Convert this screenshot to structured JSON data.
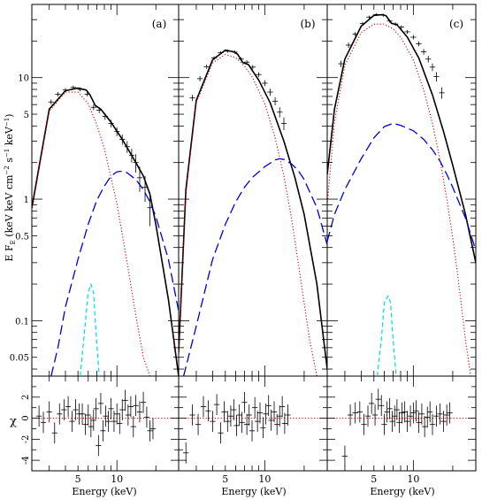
{
  "figure": {
    "ylabel": "E F_E (keV keV cm^-2 s^-1 keV^-1)",
    "ylabel_parts": {
      "main": "E F",
      "sub": "E",
      "rest": " (keV keV cm",
      "sup1": "−2",
      "mid": " s",
      "sup2": "−1",
      "mid2": " keV",
      "sup3": "−1",
      "end": ")"
    },
    "residual_ylabel": "χ",
    "xlabel": "Energy (keV)"
  },
  "colors": {
    "data": "#000000",
    "total_model": "#000000",
    "thermal_component": "#cc0000",
    "comptonized_component": "#0000cc",
    "line_component": "#00dddd",
    "zero_line": "#cc0000"
  },
  "chart_data": [
    {
      "type": "line",
      "panel_label": "(a)",
      "x_scale": "log",
      "y_scale": "log",
      "xlim": [
        2.2,
        30
      ],
      "ylim": [
        0.035,
        40
      ],
      "x_ticks": [
        5,
        10
      ],
      "y_ticks": [
        0.05,
        0.1,
        0.5,
        1,
        5,
        10
      ],
      "y_tick_labels_shown": true,
      "series": [
        {
          "kind": "total",
          "x": [
            2.2,
            3,
            4,
            5,
            5.8,
            6.2,
            6.8,
            7.5,
            9,
            11,
            14,
            16,
            18,
            20,
            25,
            30
          ],
          "y": [
            0.85,
            5.5,
            7.8,
            8.2,
            7.9,
            7.2,
            5.9,
            5.5,
            4.3,
            3.1,
            2.0,
            1.55,
            1.1,
            0.62,
            0.15,
            0.035
          ]
        },
        {
          "kind": "thermal",
          "x": [
            2.2,
            3,
            4,
            5,
            6,
            7,
            8,
            10,
            12,
            14,
            16,
            18,
            20
          ],
          "y": [
            0.8,
            5.3,
            7.6,
            7.6,
            6.1,
            4.1,
            2.6,
            0.92,
            0.3,
            0.11,
            0.05,
            0.035,
            0.02
          ]
        },
        {
          "kind": "comptonized",
          "x": [
            3.1,
            3.5,
            4,
            5,
            6,
            7,
            8,
            9,
            10,
            11,
            12,
            14,
            16,
            18,
            20,
            25,
            30
          ],
          "y": [
            0.035,
            0.06,
            0.13,
            0.32,
            0.62,
            0.98,
            1.28,
            1.55,
            1.68,
            1.7,
            1.65,
            1.45,
            1.2,
            0.95,
            0.72,
            0.32,
            0.12
          ]
        },
        {
          "kind": "line",
          "x": [
            5.2,
            5.6,
            6.0,
            6.3,
            6.6,
            6.9,
            7.3
          ],
          "y": [
            0.035,
            0.08,
            0.17,
            0.2,
            0.17,
            0.08,
            0.035
          ]
        }
      ],
      "data_points": {
        "x": [
          3.1,
          3.5,
          4.0,
          4.6,
          5.2,
          5.9,
          6.6,
          7.3,
          8.1,
          9.0,
          10.0,
          11.0,
          12.0,
          13.0,
          14.0,
          15.0,
          16.5,
          18.0
        ],
        "y": [
          6.3,
          7.3,
          7.9,
          8.3,
          8.0,
          7.3,
          5.7,
          5.4,
          4.8,
          4.2,
          3.6,
          3.1,
          2.7,
          2.3,
          2.0,
          1.5,
          1.25,
          0.85
        ],
        "y_err": [
          0.3,
          0.3,
          0.3,
          0.3,
          0.3,
          0.3,
          0.3,
          0.3,
          0.3,
          0.3,
          0.3,
          0.3,
          0.3,
          0.3,
          0.35,
          0.35,
          0.3,
          0.25
        ]
      },
      "residuals": {
        "ylim": [
          -5,
          4
        ],
        "y_ticks": [
          -4,
          -2,
          0,
          2
        ],
        "x": [
          2.5,
          2.7,
          3.0,
          3.3,
          3.6,
          3.9,
          4.2,
          4.5,
          4.8,
          5.1,
          5.4,
          5.7,
          6.0,
          6.3,
          6.6,
          6.9,
          7.2,
          7.5,
          7.8,
          8.2,
          8.6,
          9.0,
          9.5,
          10.0,
          10.5,
          11.0,
          11.6,
          12.2,
          12.8,
          13.4,
          14.0,
          15.0,
          16.0,
          17.0,
          18.0,
          19.0
        ],
        "y": [
          0.2,
          -0.4,
          0.6,
          -1.4,
          0.4,
          0.8,
          1.1,
          -0.3,
          0.8,
          0.4,
          0.4,
          -0.6,
          0.3,
          -0.8,
          -0.2,
          0.9,
          -2.6,
          1.4,
          -1.2,
          0.2,
          -0.3,
          0.9,
          -0.3,
          0.4,
          -0.5,
          0.8,
          1.7,
          0.3,
          1.1,
          -0.8,
          1.2,
          0.6,
          1.5,
          0.1,
          -1.2,
          -1.0
        ]
      }
    },
    {
      "type": "line",
      "panel_label": "(b)",
      "x_scale": "log",
      "y_scale": "log",
      "xlim": [
        2.2,
        30
      ],
      "ylim": [
        0.035,
        40
      ],
      "x_ticks": [
        5,
        10
      ],
      "y_ticks": [
        0.05,
        0.1,
        0.5,
        1,
        5,
        10
      ],
      "y_tick_labels_shown": false,
      "series": [
        {
          "kind": "total",
          "x": [
            2.2,
            2.5,
            3,
            4,
            5,
            5.8,
            6.2,
            6.8,
            7.5,
            9,
            11,
            14,
            17,
            20,
            25,
            30
          ],
          "y": [
            0.055,
            1.2,
            6.5,
            14,
            16.8,
            16.3,
            15.6,
            13.3,
            12.8,
            9.5,
            6.2,
            3.0,
            1.5,
            0.75,
            0.2,
            0.04
          ]
        },
        {
          "kind": "thermal",
          "x": [
            2.2,
            2.5,
            3,
            4,
            5,
            6,
            7,
            8,
            10,
            12,
            14,
            16,
            18,
            20,
            22,
            25,
            28
          ],
          "y": [
            0.05,
            1.1,
            6.2,
            13.2,
            15.5,
            14.6,
            12.5,
            10.2,
            6.1,
            3.2,
            1.55,
            0.7,
            0.3,
            0.14,
            0.07,
            0.035,
            0.02
          ]
        },
        {
          "kind": "comptonized",
          "x": [
            2.4,
            3,
            4,
            5,
            6,
            7,
            8,
            10,
            12,
            13,
            14,
            16,
            18,
            20,
            25,
            30
          ],
          "y": [
            0.035,
            0.09,
            0.32,
            0.62,
            0.95,
            1.25,
            1.5,
            1.85,
            2.1,
            2.15,
            2.12,
            1.95,
            1.72,
            1.45,
            0.85,
            0.42
          ]
        }
      ],
      "data_points": {
        "x": [
          2.8,
          3.2,
          3.6,
          4.1,
          4.6,
          5.2,
          5.9,
          6.6,
          7.3,
          8.1,
          9.0,
          10.0,
          11.0,
          12.0,
          13.0,
          14.0
        ],
        "y": [
          6.8,
          9.8,
          12.3,
          14.5,
          16.0,
          16.5,
          16.2,
          14.2,
          13.4,
          12.2,
          10.6,
          9.0,
          7.6,
          6.4,
          5.2,
          4.2
        ],
        "y_err": [
          0.4,
          0.5,
          0.5,
          0.5,
          0.5,
          0.5,
          0.5,
          0.5,
          0.5,
          0.5,
          0.5,
          0.5,
          0.5,
          0.5,
          0.5,
          0.5
        ]
      },
      "residuals": {
        "ylim": [
          -5,
          4
        ],
        "y_ticks": [
          -4,
          -2,
          0,
          2
        ],
        "x": [
          2.5,
          2.8,
          3.1,
          3.4,
          3.7,
          4.0,
          4.3,
          4.6,
          4.9,
          5.2,
          5.5,
          5.8,
          6.1,
          6.4,
          6.7,
          7.0,
          7.3,
          7.6,
          8.0,
          8.4,
          8.8,
          9.2,
          9.7,
          10.2,
          10.7,
          11.2,
          11.8,
          12.4,
          13.0,
          13.6,
          14.2,
          15.0
        ],
        "y": [
          -3.3,
          0.3,
          -0.6,
          1.1,
          0.7,
          -0.3,
          1.3,
          -1.4,
          0.6,
          -0.3,
          0.2,
          0.8,
          -0.7,
          0.3,
          -0.4,
          1.5,
          -0.6,
          0.3,
          -1.2,
          1.0,
          -0.3,
          0.5,
          -0.9,
          0.4,
          1.2,
          -0.2,
          0.6,
          -0.6,
          0.2,
          1.1,
          -0.5,
          0.3
        ]
      }
    },
    {
      "type": "line",
      "panel_label": "(c)",
      "x_scale": "log",
      "y_scale": "log",
      "xlim": [
        2.2,
        30
      ],
      "ylim": [
        0.035,
        40
      ],
      "x_ticks": [
        5,
        10
      ],
      "y_ticks": [
        0.05,
        0.1,
        0.5,
        1,
        5,
        10
      ],
      "y_tick_labels_shown": false,
      "series": [
        {
          "kind": "total",
          "x": [
            2.2,
            2.5,
            3,
            4,
            5,
            5.8,
            6.2,
            6.8,
            7.5,
            9,
            11,
            14,
            17,
            20,
            25,
            30
          ],
          "y": [
            1.6,
            5.5,
            14.2,
            26.5,
            32.5,
            33,
            32.2,
            28,
            27.2,
            21.5,
            14.5,
            7.2,
            3.6,
            1.9,
            0.75,
            0.3
          ]
        },
        {
          "kind": "thermal",
          "x": [
            2.2,
            2.5,
            3,
            4,
            5,
            6,
            7,
            8,
            10,
            12,
            14,
            16,
            18,
            20,
            22,
            25,
            28
          ],
          "y": [
            0.9,
            4.3,
            12.6,
            23.5,
            27.5,
            27.6,
            25.2,
            21.5,
            14.0,
            7.9,
            4.2,
            2.1,
            1.0,
            0.48,
            0.22,
            0.07,
            0.03
          ]
        },
        {
          "kind": "comptonized",
          "x": [
            2.2,
            2.5,
            3,
            4,
            5,
            6,
            7,
            8,
            10,
            12,
            14,
            16,
            18,
            20,
            25,
            30
          ],
          "y": [
            0.45,
            0.75,
            1.2,
            2.15,
            3.2,
            3.95,
            4.2,
            4.05,
            3.65,
            3.1,
            2.55,
            2.05,
            1.6,
            1.25,
            0.7,
            0.38
          ]
        },
        {
          "kind": "line",
          "x": [
            5.3,
            5.7,
            6.0,
            6.4,
            6.7,
            7.0,
            7.4
          ],
          "y": [
            0.035,
            0.07,
            0.14,
            0.16,
            0.14,
            0.07,
            0.035
          ]
        }
      ],
      "data_points": {
        "x": [
          2.8,
          3.2,
          3.6,
          4.1,
          4.6,
          5.2,
          5.9,
          6.6,
          7.3,
          8.1,
          9.0,
          10.0,
          11.0,
          12.0,
          13.0,
          14.0,
          15.0,
          16.5
        ],
        "y": [
          13,
          18.5,
          22.8,
          27.8,
          31.5,
          33,
          32.6,
          29.2,
          27.6,
          26,
          23.8,
          21.5,
          19,
          16.3,
          14.2,
          12.2,
          10.2,
          7.5
        ],
        "y_err": [
          0.8,
          0.9,
          0.9,
          0.9,
          0.9,
          0.9,
          0.9,
          0.9,
          0.9,
          0.9,
          0.9,
          0.9,
          0.9,
          0.9,
          0.9,
          0.9,
          0.9,
          0.8
        ]
      },
      "residuals": {
        "ylim": [
          -5,
          4
        ],
        "y_ticks": [
          -4,
          -2,
          0,
          2
        ],
        "x": [
          3.0,
          3.3,
          3.6,
          3.9,
          4.2,
          4.5,
          4.8,
          5.1,
          5.4,
          5.7,
          6.0,
          6.3,
          6.6,
          6.9,
          7.2,
          7.5,
          7.8,
          8.2,
          8.6,
          9.0,
          9.5,
          10.0,
          10.5,
          11.0,
          11.6,
          12.2,
          12.8,
          13.4,
          14.0,
          15.0,
          16.0,
          17.0,
          18.0,
          19.0
        ],
        "y": [
          -3.6,
          0.3,
          0.5,
          0.6,
          -0.6,
          0.2,
          1.4,
          0.3,
          1.8,
          1.2,
          -0.6,
          0.6,
          0.9,
          -0.3,
          0.2,
          0.8,
          -0.4,
          0.5,
          0.6,
          -0.3,
          0.2,
          0.5,
          0.7,
          -0.4,
          0.4,
          -0.8,
          0.1,
          0.6,
          -0.6,
          0.2,
          0.4,
          -0.3,
          0.3,
          0.5
        ]
      }
    }
  ]
}
